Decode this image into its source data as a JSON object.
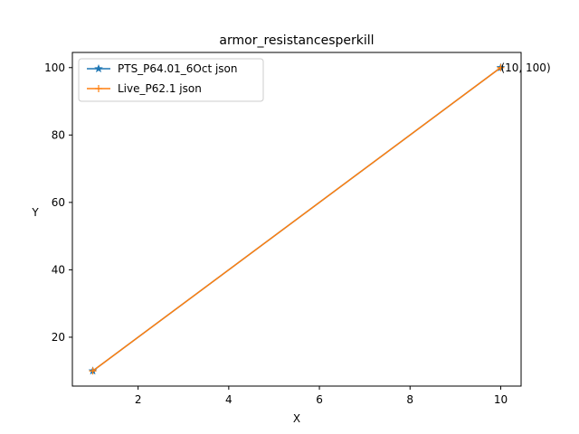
{
  "chart_data": {
    "type": "line",
    "title": "armor_resistancesperkill",
    "xlabel": "X",
    "ylabel": "Y",
    "xlim": [
      0.55,
      10.45
    ],
    "ylim": [
      5.5,
      104.5
    ],
    "xticks": [
      2,
      4,
      6,
      8,
      10
    ],
    "yticks": [
      20,
      40,
      60,
      80,
      100
    ],
    "legend_position": "upper-left",
    "series": [
      {
        "name": "PTS_P64.01_6Oct json",
        "color": "#1f77b4",
        "marker": "star",
        "x": [
          1,
          10
        ],
        "y": [
          10,
          100
        ]
      },
      {
        "name": "Live_P62.1 json",
        "color": "#ff7f0e",
        "marker": "plus",
        "x": [
          1,
          10
        ],
        "y": [
          10,
          100
        ]
      }
    ],
    "annotations": [
      {
        "text": "(10, 100)",
        "x": 10,
        "y": 100
      }
    ]
  }
}
